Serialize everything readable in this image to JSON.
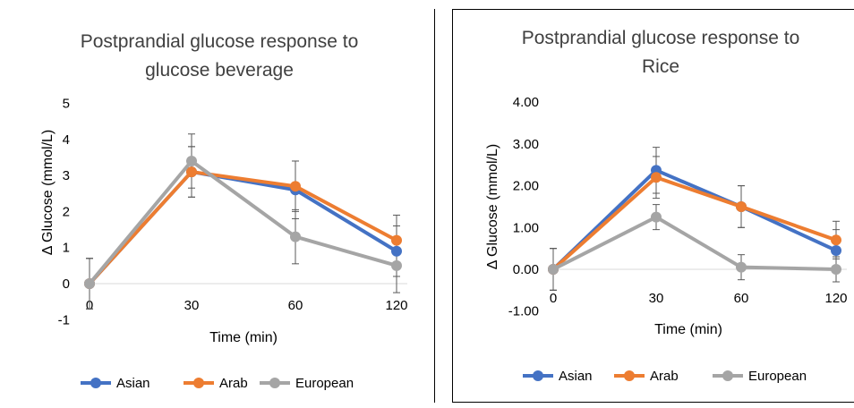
{
  "colors": {
    "asian": "#4472C4",
    "arab": "#ED7D31",
    "european": "#A5A5A5",
    "error_bar": "#595959"
  },
  "chart_data": [
    {
      "type": "line",
      "title_line1": "Postprandial glucose response to",
      "title_line2": "glucose beverage",
      "xlabel": "Time (min)",
      "ylabel": "Δ Glucose (mmol/L)",
      "categories": [
        "0",
        "30",
        "60",
        "120"
      ],
      "ylim": [
        -1,
        5
      ],
      "yticks": [
        "-1",
        "0",
        "1",
        "2",
        "3",
        "4",
        "5"
      ],
      "legend_position": "bottom",
      "series": [
        {
          "name": "Asian",
          "values": [
            0,
            3.1,
            2.6,
            0.9
          ],
          "error": [
            0.7,
            0.7,
            0.8,
            0.7
          ]
        },
        {
          "name": "Arab",
          "values": [
            0,
            3.1,
            2.7,
            1.2
          ],
          "error": [
            0.7,
            0.7,
            0.7,
            0.7
          ]
        },
        {
          "name": "European",
          "values": [
            0,
            3.4,
            1.3,
            0.5
          ],
          "error": [
            0.7,
            0.75,
            0.75,
            0.75
          ]
        }
      ]
    },
    {
      "type": "line",
      "title_line1": "Postprandial glucose response to",
      "title_line2": "Rice",
      "xlabel": "Time (min)",
      "ylabel": "Δ Glucose (mmol/L)",
      "categories": [
        "0",
        "30",
        "60",
        "120"
      ],
      "ylim": [
        -1,
        4
      ],
      "yticks": [
        "-1.00",
        "0.00",
        "1.00",
        "2.00",
        "3.00",
        "4.00"
      ],
      "legend_position": "bottom",
      "series": [
        {
          "name": "Asian",
          "values": [
            0,
            2.37,
            1.5,
            0.45
          ],
          "error": [
            0.5,
            0.55,
            0.5,
            0.5
          ]
        },
        {
          "name": "Arab",
          "values": [
            0,
            2.2,
            1.5,
            0.7
          ],
          "error": [
            0.5,
            0.5,
            0.5,
            0.45
          ]
        },
        {
          "name": "European",
          "values": [
            0,
            1.25,
            0.05,
            0.0
          ],
          "error": [
            0.5,
            0.3,
            0.3,
            0.3
          ]
        }
      ]
    }
  ]
}
